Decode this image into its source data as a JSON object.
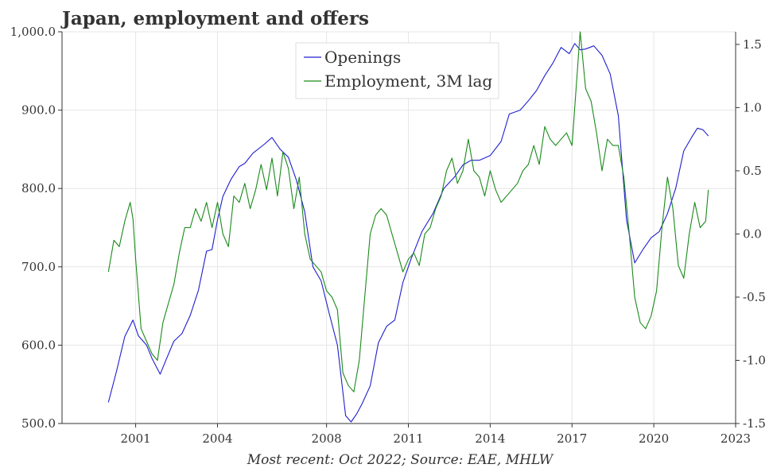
{
  "chart_data": {
    "type": "line",
    "title": "Japan, employment and offers",
    "source": "Most recent: Oct 2022; Source: EAE, MHLW",
    "xlabel": "",
    "ylabel_left": "",
    "ylabel_right": "",
    "xlim": [
      1998.3,
      2023
    ],
    "x_ticks": [
      2001,
      2004,
      2008,
      2011,
      2014,
      2017,
      2020,
      2023
    ],
    "ylim_left": [
      500,
      1000
    ],
    "y_ticks_left": [
      "500.0",
      "600.0",
      "700.0",
      "800.0",
      "900.0",
      "1,000.0"
    ],
    "ylim_right": [
      -1.5,
      1.6
    ],
    "y_ticks_right": [
      "-1.5",
      "-1.0",
      "-0.5",
      "0.0",
      "0.5",
      "1.0",
      "1.5"
    ],
    "grid": true,
    "legend_position": "top-center",
    "series": [
      {
        "name": "Openings",
        "axis": "left",
        "color": "#1f1fcf",
        "x": [
          2000.0,
          2000.3,
          2000.6,
          2000.9,
          2001.1,
          2001.4,
          2001.6,
          2001.9,
          2002.1,
          2002.4,
          2002.7,
          2003.0,
          2003.3,
          2003.6,
          2003.8,
          2004.0,
          2004.2,
          2004.5,
          2004.8,
          2005.0,
          2005.3,
          2005.7,
          2006.0,
          2006.3,
          2006.6,
          2006.9,
          2007.2,
          2007.5,
          2007.8,
          2008.1,
          2008.4,
          2008.7,
          2008.9,
          2009.1,
          2009.3,
          2009.6,
          2009.9,
          2010.2,
          2010.5,
          2010.8,
          2011.1,
          2011.5,
          2011.9,
          2012.3,
          2012.7,
          2013.0,
          2013.3,
          2013.6,
          2014.0,
          2014.4,
          2014.7,
          2015.1,
          2015.4,
          2015.7,
          2016.0,
          2016.3,
          2016.6,
          2016.9,
          2017.1,
          2017.3,
          2017.5,
          2017.8,
          2018.1,
          2018.4,
          2018.7,
          2019.0,
          2019.3,
          2019.6,
          2019.9,
          2020.2,
          2020.5,
          2020.8,
          2021.1,
          2021.4,
          2021.6,
          2021.8,
          2022.0
        ],
        "values": [
          527,
          567,
          611,
          632,
          612,
          600,
          583,
          563,
          580,
          605,
          615,
          638,
          670,
          720,
          722,
          760,
          790,
          812,
          828,
          832,
          845,
          856,
          865,
          850,
          840,
          810,
          770,
          700,
          682,
          640,
          600,
          510,
          502,
          512,
          525,
          548,
          603,
          624,
          632,
          680,
          710,
          745,
          768,
          800,
          815,
          830,
          836,
          836,
          842,
          860,
          895,
          900,
          912,
          925,
          944,
          960,
          980,
          972,
          985,
          977,
          978,
          982,
          970,
          946,
          893,
          760,
          705,
          722,
          737,
          745,
          768,
          800,
          848,
          866,
          877,
          875,
          867
        ]
      },
      {
        "name": "Employment, 3M lag",
        "axis": "right",
        "color": "#1a8a1a",
        "x": [
          2000.0,
          2000.2,
          2000.4,
          2000.6,
          2000.8,
          2000.9,
          2001.0,
          2001.2,
          2001.4,
          2001.6,
          2001.8,
          2002.0,
          2002.2,
          2002.4,
          2002.6,
          2002.8,
          2003.0,
          2003.2,
          2003.4,
          2003.6,
          2003.8,
          2004.0,
          2004.2,
          2004.4,
          2004.6,
          2004.8,
          2005.0,
          2005.2,
          2005.4,
          2005.6,
          2005.8,
          2006.0,
          2006.2,
          2006.4,
          2006.6,
          2006.8,
          2007.0,
          2007.2,
          2007.4,
          2007.6,
          2007.8,
          2008.0,
          2008.2,
          2008.4,
          2008.6,
          2008.8,
          2009.0,
          2009.2,
          2009.4,
          2009.6,
          2009.8,
          2010.0,
          2010.2,
          2010.4,
          2010.6,
          2010.8,
          2011.0,
          2011.2,
          2011.4,
          2011.6,
          2011.8,
          2012.0,
          2012.2,
          2012.4,
          2012.6,
          2012.8,
          2013.0,
          2013.2,
          2013.4,
          2013.6,
          2013.8,
          2014.0,
          2014.2,
          2014.4,
          2014.6,
          2014.8,
          2015.0,
          2015.2,
          2015.4,
          2015.6,
          2015.8,
          2016.0,
          2016.2,
          2016.4,
          2016.6,
          2016.8,
          2017.0,
          2017.1,
          2017.3,
          2017.5,
          2017.7,
          2017.9,
          2018.1,
          2018.3,
          2018.5,
          2018.7,
          2018.9,
          2019.1,
          2019.3,
          2019.5,
          2019.7,
          2019.9,
          2020.1,
          2020.3,
          2020.5,
          2020.7,
          2020.9,
          2021.1,
          2021.3,
          2021.5,
          2021.7,
          2021.9,
          2022.0
        ],
        "values": [
          -0.3,
          -0.05,
          -0.1,
          0.1,
          0.25,
          0.12,
          -0.2,
          -0.75,
          -0.85,
          -0.95,
          -1.0,
          -0.7,
          -0.55,
          -0.4,
          -0.15,
          0.05,
          0.05,
          0.2,
          0.1,
          0.25,
          0.05,
          0.25,
          0.0,
          -0.1,
          0.3,
          0.25,
          0.4,
          0.2,
          0.35,
          0.55,
          0.35,
          0.6,
          0.3,
          0.65,
          0.52,
          0.2,
          0.45,
          0.0,
          -0.2,
          -0.25,
          -0.3,
          -0.45,
          -0.5,
          -0.6,
          -1.1,
          -1.2,
          -1.25,
          -1.0,
          -0.5,
          0.0,
          0.15,
          0.2,
          0.15,
          0.0,
          -0.15,
          -0.3,
          -0.2,
          -0.15,
          -0.25,
          0.0,
          0.05,
          0.2,
          0.3,
          0.5,
          0.6,
          0.4,
          0.5,
          0.75,
          0.5,
          0.45,
          0.3,
          0.5,
          0.35,
          0.25,
          0.3,
          0.35,
          0.4,
          0.5,
          0.55,
          0.7,
          0.55,
          0.85,
          0.75,
          0.7,
          0.75,
          0.8,
          0.7,
          1.0,
          1.6,
          1.15,
          1.05,
          0.8,
          0.5,
          0.75,
          0.7,
          0.7,
          0.45,
          0.0,
          -0.5,
          -0.7,
          -0.75,
          -0.65,
          -0.45,
          0.05,
          0.45,
          0.2,
          -0.25,
          -0.35,
          0.0,
          0.25,
          0.05,
          0.1,
          0.35
        ]
      }
    ]
  }
}
